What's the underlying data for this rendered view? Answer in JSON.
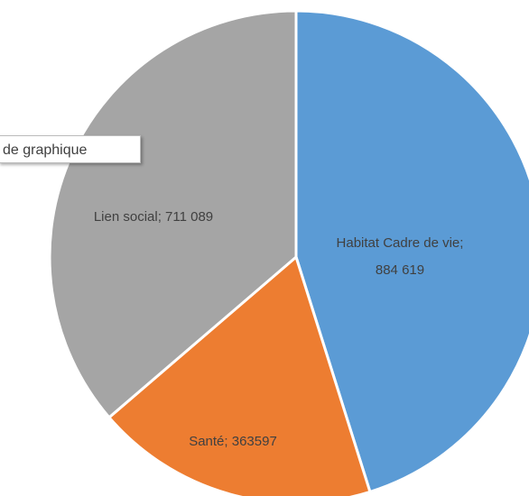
{
  "chart_data": {
    "type": "pie",
    "values": [
      884619,
      363597,
      711089
    ],
    "value_labels": [
      "Habitat Cadre de vie; 884 619",
      "Santé; 363597",
      "Lien social; 711 089"
    ],
    "colors": [
      "#5b9bd5",
      "#ed7d31",
      "#a5a5a5"
    ]
  },
  "tooltip": "de graphique"
}
